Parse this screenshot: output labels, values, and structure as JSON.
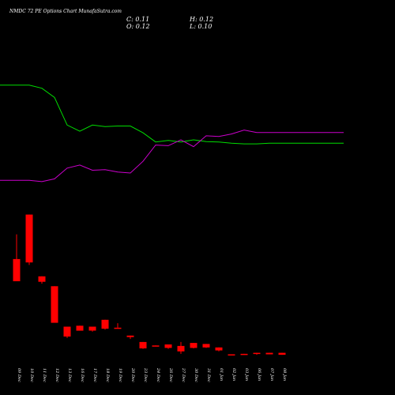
{
  "header": {
    "title": "NMDC 72 PE Options Chart MunafaSutra.com",
    "close": "C: 0.11",
    "high": "H: 0.12",
    "open": "O: 0.12",
    "low": "L: 0.10"
  },
  "colors": {
    "background": "#000000",
    "up": "#00ff00",
    "down": "#ff0000",
    "line_green": "#00dd00",
    "line_magenta": "#cc00cc",
    "text": "#ffffff"
  },
  "chart_data": [
    {
      "type": "line",
      "title": "",
      "x": [
        "09 Dec",
        "10 Dec",
        "11 Dec",
        "12 Dec",
        "13 Dec",
        "16 Dec",
        "17 Dec",
        "18 Dec",
        "19 Dec",
        "20 Dec",
        "23 Dec",
        "24 Dec",
        "26 Dec",
        "27 Dec",
        "30 Dec",
        "31 Dec",
        "01 Jan",
        "02 Jan",
        "03 Jan",
        "06 Jan",
        "07 Jan",
        "08 Jan"
      ],
      "series": [
        {
          "color": "#00dd00",
          "values": [
            62,
            62,
            61,
            58,
            49,
            47,
            49,
            48.5,
            48.7,
            48.7,
            46.5,
            43.5,
            44,
            43.5,
            44.2,
            43.6,
            43.5,
            43.1,
            42.9,
            42.9,
            43.1,
            43.1
          ]
        },
        {
          "color": "#cc00cc",
          "values": [
            31,
            31,
            30.6,
            31.5,
            35,
            36,
            34.3,
            34.5,
            33.7,
            33.4,
            37.2,
            42.5,
            42.3,
            44.2,
            42,
            45.5,
            45.3,
            46.1,
            47.4,
            46.6,
            46.6,
            46.6
          ]
        }
      ],
      "grid": false
    },
    {
      "type": "candlestick",
      "x": [
        "09 Dec",
        "10 Dec",
        "11 Dec",
        "12 Dec",
        "13 Dec",
        "16 Dec",
        "17 Dec",
        "18 Dec",
        "19 Dec",
        "20 Dec",
        "23 Dec",
        "24 Dec",
        "26 Dec",
        "27 Dec",
        "30 Dec",
        "31 Dec",
        "01 Jan",
        "02 Jan",
        "03 Jan",
        "06 Jan",
        "07 Jan",
        "08 Jan"
      ],
      "open": [
        2.05,
        2.95,
        1.7,
        1.5,
        0.68,
        0.7,
        0.68,
        0.82,
        0.66,
        0.5,
        0.37,
        0.3,
        0.32,
        0.29,
        0.35,
        0.33,
        0.26,
        0.12,
        0.13,
        0.15,
        0.15,
        0.15
      ],
      "high": [
        2.55,
        2.95,
        1.7,
        1.5,
        0.68,
        0.7,
        0.68,
        0.82,
        0.75,
        0.5,
        0.37,
        0.3,
        0.32,
        0.37,
        0.35,
        0.33,
        0.26,
        0.12,
        0.13,
        0.15,
        0.15,
        0.15
      ],
      "low": [
        1.6,
        1.93,
        1.55,
        0.76,
        0.45,
        0.6,
        0.58,
        0.62,
        0.66,
        0.43,
        0.23,
        0.28,
        0.23,
        0.13,
        0.24,
        0.25,
        0.18,
        0.1,
        0.11,
        0.11,
        0.12,
        0.11
      ],
      "close": [
        1.6,
        1.98,
        1.59,
        0.76,
        0.48,
        0.6,
        0.6,
        0.64,
        0.64,
        0.47,
        0.24,
        0.28,
        0.25,
        0.18,
        0.25,
        0.26,
        0.2,
        0.11,
        0.12,
        0.13,
        0.12,
        0.11
      ],
      "ylim": [
        0,
        3.2
      ]
    }
  ]
}
